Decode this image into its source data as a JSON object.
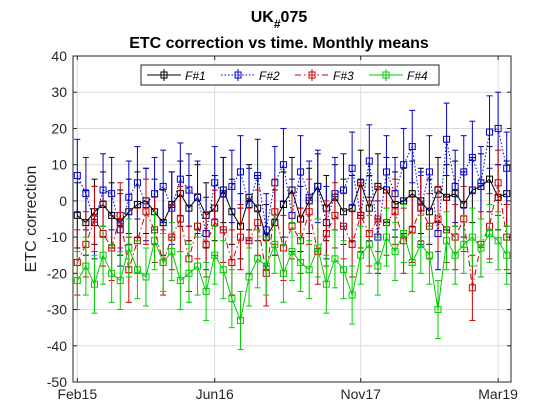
{
  "chart_data": {
    "type": "line",
    "title_main": "UK",
    "title_sub": "#",
    "title_suffix": "075",
    "subtitle": "ETC correction vs time. Monthly means",
    "ylabel": "ETC correction",
    "xlabel": "",
    "ylim": [
      -50,
      40
    ],
    "yticks": [
      -50,
      -40,
      -30,
      -20,
      -10,
      0,
      10,
      20,
      30,
      40
    ],
    "xlim": [
      0,
      51
    ],
    "x_ticks": [
      {
        "label": "Feb15",
        "x": 0.5
      },
      {
        "label": "Jun16",
        "x": 16.5
      },
      {
        "label": "Nov17",
        "x": 33.5
      },
      {
        "label": "Mar19",
        "x": 49.5
      }
    ],
    "grid": true,
    "legend_position": "top",
    "series": [
      {
        "name": "F#1",
        "color": "#000000",
        "dash": "solid",
        "values": [
          -4,
          -6,
          -3,
          -1,
          -4,
          -6,
          -3,
          -1,
          0,
          -3,
          -6,
          -1,
          2,
          -2,
          1,
          -4,
          -2,
          3,
          -3,
          -7,
          1,
          -2,
          -10,
          -6,
          -1,
          3,
          -5,
          0,
          4,
          -2,
          1,
          -3,
          -2,
          5,
          -2,
          4,
          3,
          -1,
          0,
          2,
          0,
          -3,
          3,
          1,
          2,
          -1,
          3,
          4,
          6,
          1,
          2
        ],
        "errors": [
          9,
          9,
          9,
          9,
          9,
          9,
          9,
          9,
          9,
          9,
          9,
          9,
          9,
          9,
          9,
          9,
          9,
          9,
          9,
          9,
          9,
          9,
          9,
          9,
          9,
          9,
          9,
          9,
          9,
          9,
          9,
          9,
          9,
          9,
          9,
          9,
          9,
          9,
          9,
          9,
          9,
          9,
          9,
          9,
          9,
          9,
          9,
          9,
          9,
          9,
          9
        ]
      },
      {
        "name": "F#2",
        "color": "#0000cc",
        "dash": "dotted",
        "values": [
          7,
          2,
          -6,
          3,
          2,
          -8,
          1,
          5,
          -1,
          2,
          4,
          -2,
          6,
          3,
          1,
          -9,
          5,
          2,
          4,
          8,
          -1,
          7,
          -8,
          5,
          10,
          -4,
          8,
          1,
          4,
          -6,
          2,
          3,
          9,
          -4,
          11,
          -10,
          8,
          2,
          10,
          15,
          -2,
          8,
          -9,
          17,
          4,
          8,
          12,
          5,
          19,
          20,
          9
        ],
        "errors": [
          10,
          10,
          10,
          10,
          10,
          10,
          10,
          10,
          10,
          10,
          10,
          10,
          10,
          10,
          10,
          10,
          10,
          10,
          10,
          10,
          10,
          10,
          10,
          10,
          10,
          10,
          10,
          10,
          10,
          10,
          10,
          10,
          10,
          10,
          10,
          10,
          10,
          10,
          10,
          10,
          10,
          10,
          10,
          10,
          10,
          10,
          10,
          10,
          10,
          10,
          10
        ]
      },
      {
        "name": "F#3",
        "color": "#cc0000",
        "dash": "dashdot",
        "values": [
          -17,
          -12,
          -5,
          -9,
          -13,
          -4,
          -19,
          -11,
          -3,
          -8,
          -17,
          -10,
          -5,
          -16,
          -7,
          -12,
          -6,
          -8,
          -17,
          -10,
          -11,
          -6,
          -20,
          -3,
          -13,
          -7,
          -11,
          -3,
          -14,
          -9,
          -4,
          -7,
          -12,
          -4,
          -9,
          -5,
          -6,
          -3,
          -11,
          -8,
          -2,
          -7,
          -5,
          -8,
          -10,
          -5,
          -24,
          -12,
          -7,
          5,
          -10
        ],
        "errors": [
          9,
          9,
          9,
          9,
          9,
          9,
          9,
          9,
          9,
          9,
          9,
          9,
          9,
          9,
          9,
          9,
          9,
          9,
          9,
          9,
          9,
          9,
          9,
          9,
          9,
          9,
          9,
          9,
          9,
          9,
          9,
          9,
          9,
          9,
          9,
          9,
          9,
          9,
          9,
          9,
          9,
          9,
          9,
          9,
          9,
          9,
          9,
          9,
          9,
          9,
          9
        ]
      },
      {
        "name": "F#4",
        "color": "#00cc00",
        "dash": "solid",
        "values": [
          -22,
          -18,
          -23,
          -15,
          -20,
          -22,
          -13,
          -19,
          -21,
          -11,
          -17,
          -14,
          -22,
          -20,
          -18,
          -25,
          -15,
          -19,
          -27,
          -33,
          -21,
          -16,
          -18,
          -12,
          -20,
          -14,
          -17,
          -19,
          -13,
          -23,
          -16,
          -19,
          -26,
          -15,
          -12,
          -18,
          -10,
          -14,
          -9,
          -17,
          -12,
          -15,
          -30,
          -11,
          -15,
          -12,
          -10,
          -13,
          -9,
          -11,
          -15
        ],
        "errors": [
          8,
          8,
          8,
          8,
          8,
          8,
          8,
          8,
          8,
          8,
          8,
          8,
          8,
          8,
          8,
          8,
          8,
          8,
          8,
          8,
          8,
          8,
          8,
          8,
          8,
          8,
          8,
          8,
          8,
          8,
          8,
          8,
          8,
          8,
          8,
          8,
          8,
          8,
          8,
          8,
          8,
          8,
          8,
          8,
          8,
          8,
          8,
          8,
          8,
          8,
          8
        ]
      }
    ]
  }
}
